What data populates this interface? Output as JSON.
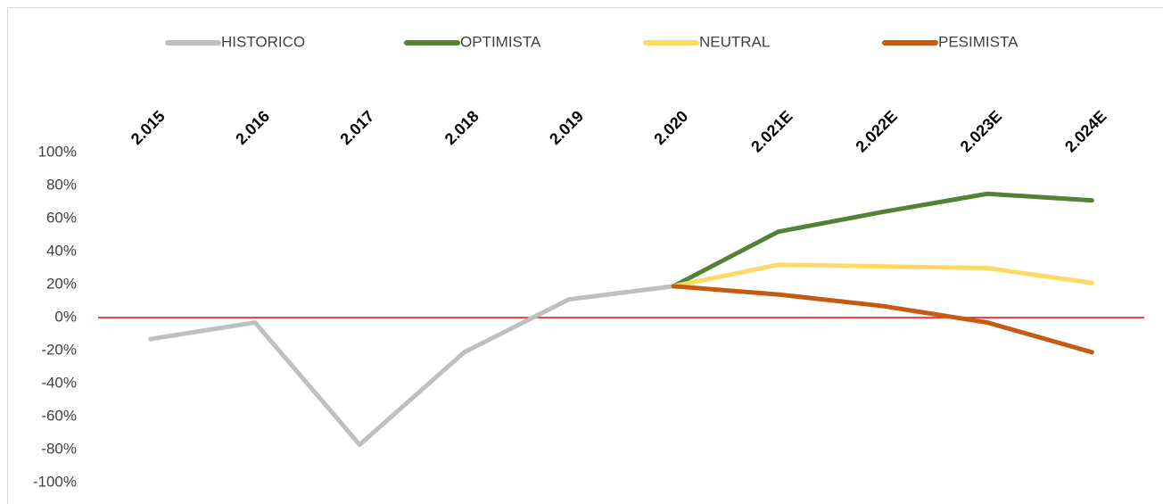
{
  "chart_data": {
    "type": "line",
    "categories": [
      "2.015",
      "2.016",
      "2.017",
      "2.018",
      "2.019",
      "2.020",
      "2.021E",
      "2.022E",
      "2.023E",
      "2.024E"
    ],
    "series": [
      {
        "name": "HISTORICO",
        "color": "#bfbfbf",
        "values": [
          -13,
          -3,
          -77,
          -21,
          11,
          19,
          null,
          null,
          null,
          null
        ]
      },
      {
        "name": "OPTIMISTA",
        "color": "#548235",
        "values": [
          null,
          null,
          null,
          null,
          null,
          19,
          52,
          64,
          75,
          71
        ]
      },
      {
        "name": "NEUTRAL",
        "color": "#ffd966",
        "values": [
          null,
          null,
          null,
          null,
          null,
          19,
          32,
          31,
          30,
          21
        ]
      },
      {
        "name": "PESIMISTA",
        "color": "#c55a11",
        "values": [
          null,
          null,
          null,
          null,
          null,
          19,
          14,
          7,
          -3,
          -21
        ]
      }
    ],
    "ylim": [
      -100,
      100
    ],
    "yticks": [
      {
        "value": -100,
        "label": "-100%"
      },
      {
        "value": -80,
        "label": "-80%"
      },
      {
        "value": -60,
        "label": "-60%"
      },
      {
        "value": -40,
        "label": "-40%"
      },
      {
        "value": -20,
        "label": "-20%"
      },
      {
        "value": 0,
        "label": "0%"
      },
      {
        "value": 20,
        "label": "20%"
      },
      {
        "value": 40,
        "label": "40%"
      },
      {
        "value": 60,
        "label": "60%"
      },
      {
        "value": 80,
        "label": "80%"
      },
      {
        "value": 100,
        "label": "100%"
      }
    ],
    "grid": false,
    "zero_line_color": "#ff0000",
    "legend": "top"
  }
}
